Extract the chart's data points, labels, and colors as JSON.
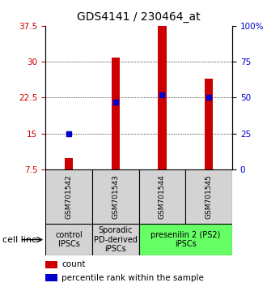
{
  "title": "GDS4141 / 230464_at",
  "samples": [
    "GSM701542",
    "GSM701543",
    "GSM701544",
    "GSM701545"
  ],
  "count_values": [
    9.8,
    30.8,
    37.5,
    26.5
  ],
  "percentile_values": [
    25,
    47,
    52,
    50
  ],
  "left_ylim": [
    7.5,
    37.5
  ],
  "left_yticks": [
    7.5,
    15.0,
    22.5,
    30.0,
    37.5
  ],
  "right_ylim": [
    0,
    100
  ],
  "right_yticks": [
    0,
    25,
    50,
    75,
    100
  ],
  "right_yticklabels": [
    "0",
    "25",
    "50",
    "75",
    "100%"
  ],
  "bar_color": "#cc0000",
  "dot_color": "#0000cc",
  "groups": [
    {
      "label": "control\nIPSCs",
      "cols": [
        0
      ],
      "color": "#d3d3d3"
    },
    {
      "label": "Sporadic\nPD-derived\niPSCs",
      "cols": [
        1
      ],
      "color": "#d3d3d3"
    },
    {
      "label": "presenilin 2 (PS2)\niPSCs",
      "cols": [
        2,
        3
      ],
      "color": "#66ff66"
    }
  ],
  "cell_line_label": "cell line",
  "legend_count_label": "count",
  "legend_percentile_label": "percentile rank within the sample",
  "title_fontsize": 10,
  "tick_fontsize": 7.5,
  "sample_fontsize": 6.5,
  "group_fontsize": 7.0,
  "legend_fontsize": 7.5,
  "cell_line_fontsize": 8
}
